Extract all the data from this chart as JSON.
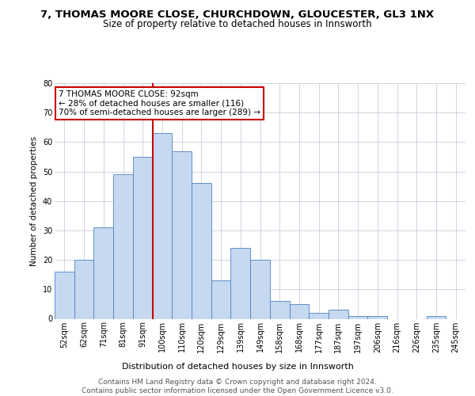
{
  "title": "7, THOMAS MOORE CLOSE, CHURCHDOWN, GLOUCESTER, GL3 1NX",
  "subtitle": "Size of property relative to detached houses in Innsworth",
  "xlabel": "Distribution of detached houses by size in Innsworth",
  "ylabel": "Number of detached properties",
  "categories": [
    "52sqm",
    "62sqm",
    "71sqm",
    "81sqm",
    "91sqm",
    "100sqm",
    "110sqm",
    "120sqm",
    "129sqm",
    "139sqm",
    "149sqm",
    "158sqm",
    "168sqm",
    "177sqm",
    "187sqm",
    "197sqm",
    "206sqm",
    "216sqm",
    "226sqm",
    "235sqm",
    "245sqm"
  ],
  "values": [
    16,
    20,
    31,
    49,
    55,
    63,
    57,
    46,
    13,
    24,
    20,
    6,
    5,
    2,
    3,
    1,
    1,
    0,
    0,
    1,
    0
  ],
  "bar_color": "#c6d9f1",
  "bar_edge_color": "#4f81bd",
  "annotation_line1": "7 THOMAS MOORE CLOSE: 92sqm",
  "annotation_line2": "← 28% of detached houses are smaller (116)",
  "annotation_line3": "70% of semi-detached houses are larger (289) →",
  "annotation_box_color": "#ffffff",
  "annotation_box_edge": "#cc0000",
  "vline_x": 4.5,
  "vline_color": "#cc0000",
  "ylim": [
    0,
    80
  ],
  "yticks": [
    0,
    10,
    20,
    30,
    40,
    50,
    60,
    70,
    80
  ],
  "background_color": "#ffffff",
  "grid_color": "#c8d0dc",
  "footer": "Contains HM Land Registry data © Crown copyright and database right 2024.\nContains public sector information licensed under the Open Government Licence v3.0.",
  "title_fontsize": 9.5,
  "subtitle_fontsize": 8.5,
  "xlabel_fontsize": 8,
  "ylabel_fontsize": 7.5,
  "tick_fontsize": 7,
  "annotation_fontsize": 7.5,
  "footer_fontsize": 6.5
}
